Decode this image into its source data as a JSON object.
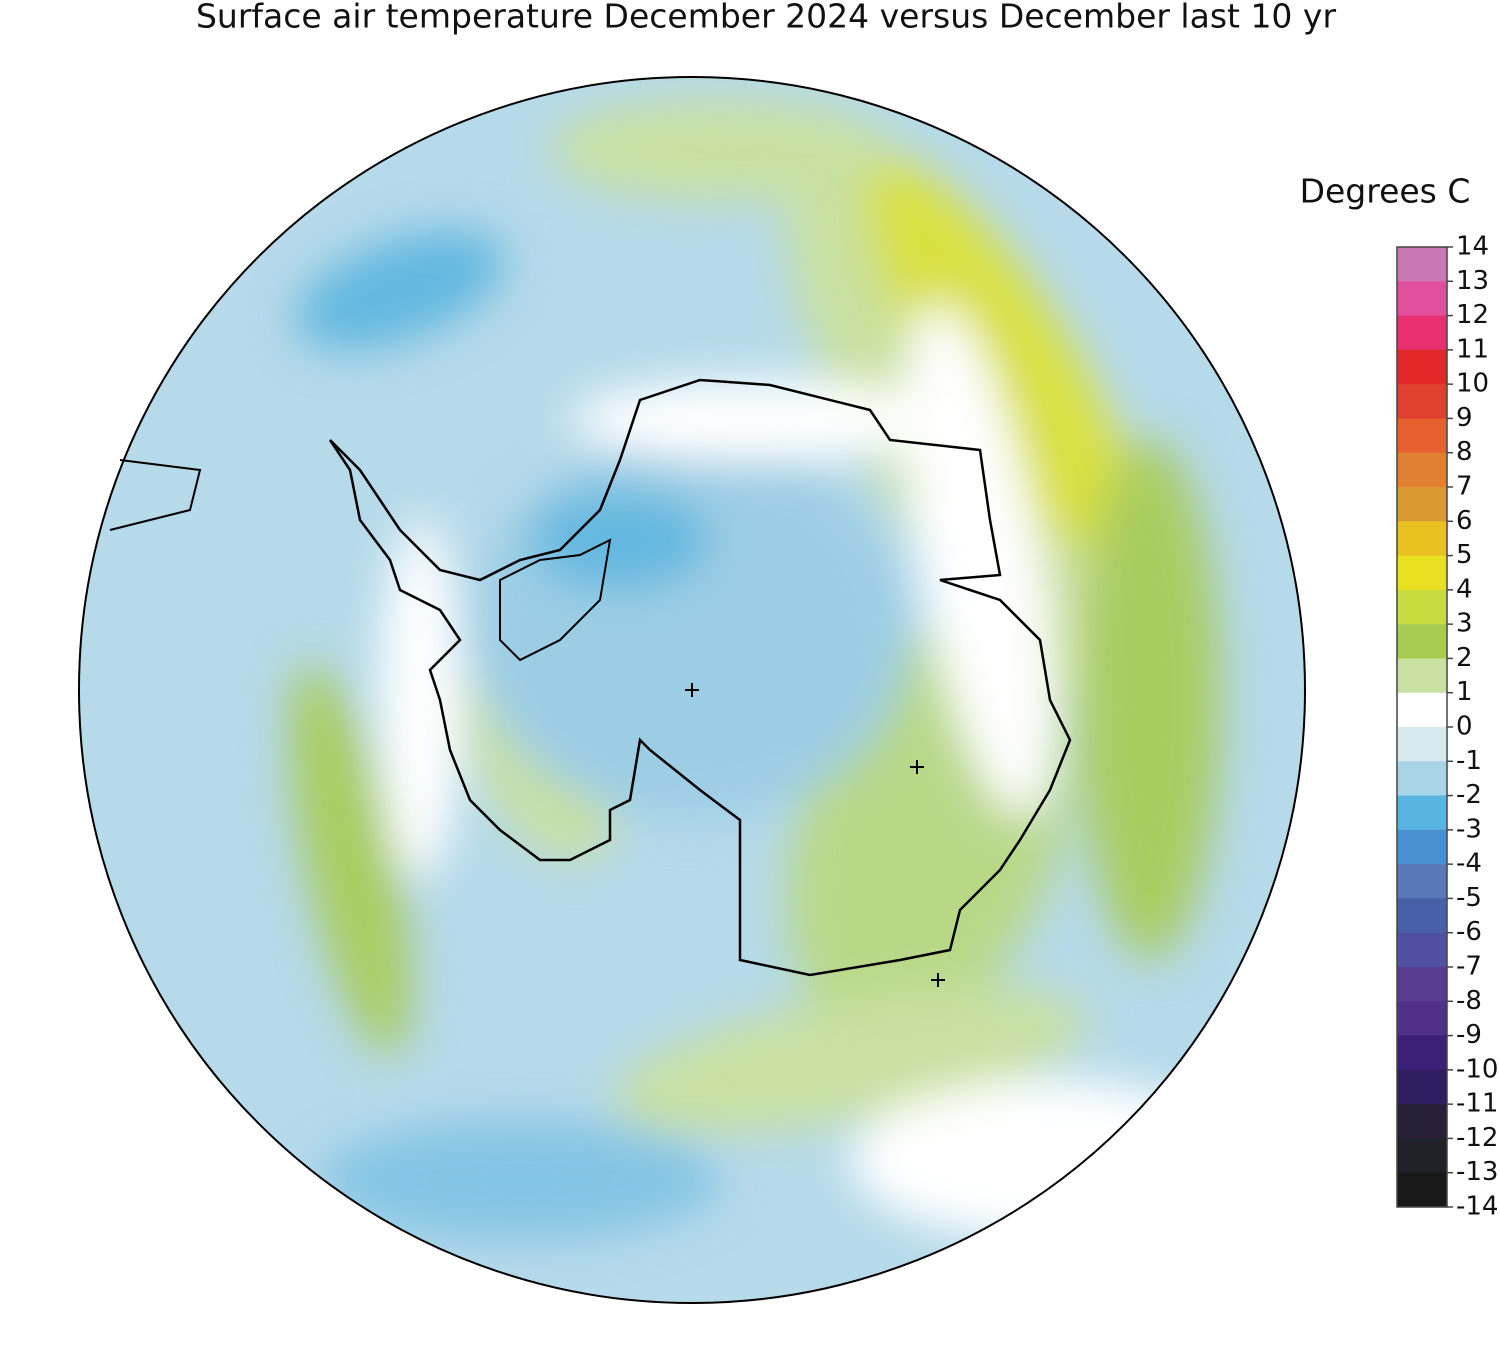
{
  "title": "Surface air temperature December 2024 versus December last 10 yr",
  "legend": {
    "title": "Degrees C",
    "ticks": [
      14,
      13,
      12,
      11,
      10,
      9,
      8,
      7,
      6,
      5,
      4,
      3,
      2,
      1,
      0,
      -1,
      -2,
      -3,
      -4,
      -5,
      -6,
      -7,
      -8,
      -9,
      -10,
      -11,
      -12,
      -13,
      -14
    ],
    "colors": [
      "#c878b4",
      "#e0509c",
      "#e83070",
      "#e02828",
      "#e04030",
      "#e86030",
      "#e08030",
      "#d89a30",
      "#e8c020",
      "#e8e020",
      "#c8dc40",
      "#a8cc50",
      "#c8e0a0",
      "#ffffff",
      "#d8eaf0",
      "#a8d4e8",
      "#58b4e0",
      "#4890d0",
      "#5878b8",
      "#4860a8",
      "#5050a0",
      "#583c90",
      "#503088",
      "#3c2078",
      "#301c60",
      "#282038",
      "#202028",
      "#181818"
    ]
  }
}
